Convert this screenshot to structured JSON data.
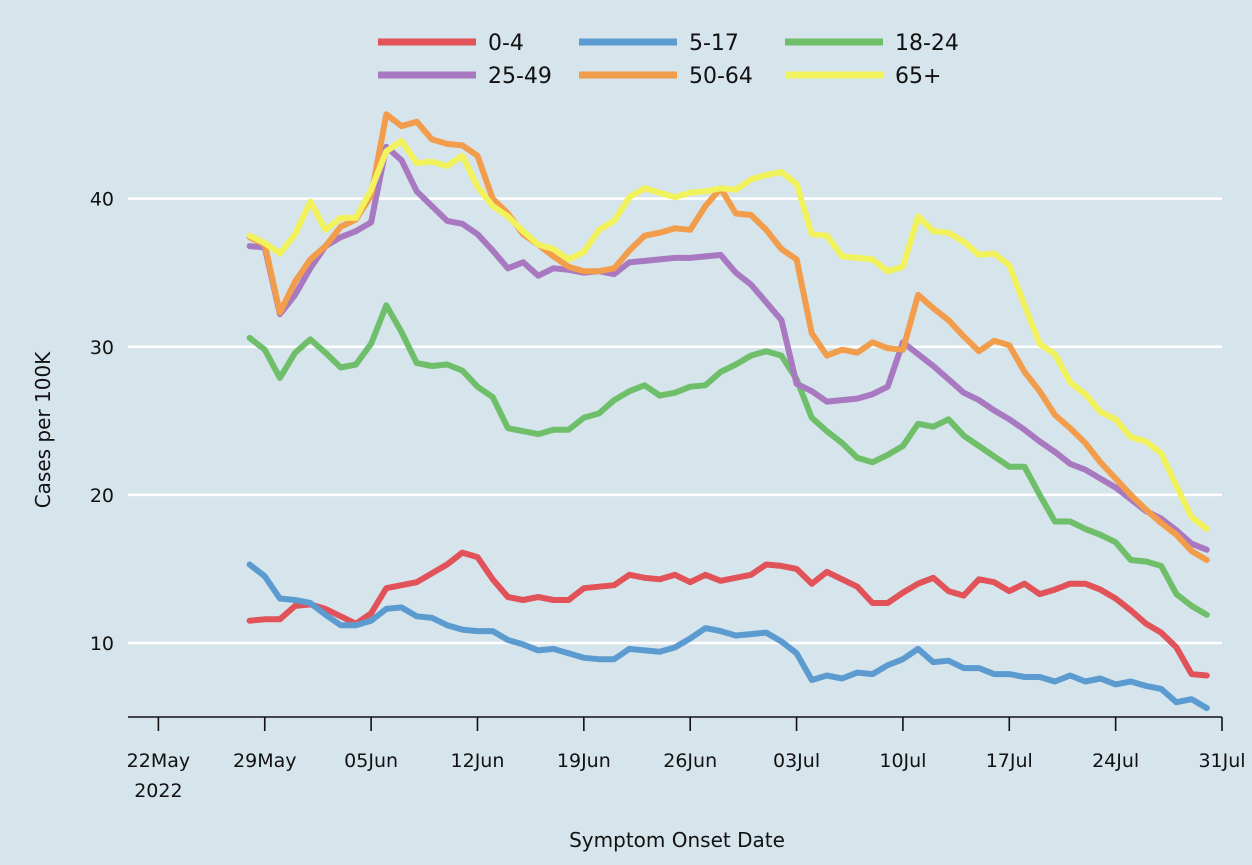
{
  "chart_data": {
    "type": "line",
    "title": "",
    "xlabel": "Symptom Onset Date",
    "ylabel": "Cases per 100K",
    "xlim": [
      "2022-05-20",
      "2022-07-31"
    ],
    "ylim": [
      5,
      47
    ],
    "grid": true,
    "legend_position": "top",
    "x_ticks": [
      {
        "date": "2022-05-22",
        "label": "22May",
        "sublabel": "2022"
      },
      {
        "date": "2022-05-29",
        "label": "29May"
      },
      {
        "date": "2022-06-05",
        "label": "05Jun"
      },
      {
        "date": "2022-06-12",
        "label": "12Jun"
      },
      {
        "date": "2022-06-19",
        "label": "19Jun"
      },
      {
        "date": "2022-06-26",
        "label": "26Jun"
      },
      {
        "date": "2022-07-03",
        "label": "03Jul"
      },
      {
        "date": "2022-07-10",
        "label": "10Jul"
      },
      {
        "date": "2022-07-17",
        "label": "17Jul"
      },
      {
        "date": "2022-07-24",
        "label": "24Jul"
      },
      {
        "date": "2022-07-31",
        "label": "31Jul"
      }
    ],
    "y_ticks": [
      10,
      20,
      30,
      40
    ],
    "x_start": "2022-05-28",
    "x_step_days": 1,
    "series": [
      {
        "name": "0-4",
        "color": "#e15259",
        "values": [
          11.5,
          11.6,
          11.6,
          12.5,
          12.6,
          12.3,
          11.8,
          11.3,
          12.0,
          13.7,
          13.9,
          14.1,
          14.7,
          15.3,
          16.1,
          15.8,
          14.3,
          13.1,
          12.9,
          13.1,
          12.9,
          12.9,
          13.7,
          13.8,
          13.9,
          14.6,
          14.4,
          14.3,
          14.6,
          14.1,
          14.6,
          14.2,
          14.4,
          14.6,
          15.3,
          15.2,
          15.0,
          14.0,
          14.8,
          14.3,
          13.8,
          12.7,
          12.7,
          13.4,
          14.0,
          14.4,
          13.5,
          13.2,
          14.3,
          14.1,
          13.5,
          14.0,
          13.3,
          13.6,
          14.0,
          14.0,
          13.6,
          13.0,
          12.2,
          11.3,
          10.7,
          9.7,
          7.9,
          7.8
        ]
      },
      {
        "name": "5-17",
        "color": "#5b9bd0",
        "values": [
          15.3,
          14.5,
          13.0,
          12.9,
          12.7,
          11.9,
          11.2,
          11.2,
          11.5,
          12.3,
          12.4,
          11.8,
          11.7,
          11.2,
          10.9,
          10.8,
          10.8,
          10.2,
          9.9,
          9.5,
          9.6,
          9.3,
          9.0,
          8.9,
          8.9,
          9.6,
          9.5,
          9.4,
          9.7,
          10.3,
          11.0,
          10.8,
          10.5,
          10.6,
          10.7,
          10.1,
          9.3,
          7.5,
          7.8,
          7.6,
          8.0,
          7.9,
          8.5,
          8.9,
          9.6,
          8.7,
          8.8,
          8.3,
          8.3,
          7.9,
          7.9,
          7.7,
          7.7,
          7.4,
          7.8,
          7.4,
          7.6,
          7.2,
          7.4,
          7.1,
          6.9,
          6.0,
          6.2,
          5.6
        ]
      },
      {
        "name": "18-24",
        "color": "#6fbf6a",
        "values": [
          30.6,
          29.8,
          27.9,
          29.6,
          30.5,
          29.6,
          28.6,
          28.8,
          30.2,
          32.8,
          31.0,
          28.9,
          28.7,
          28.8,
          28.4,
          27.3,
          26.6,
          24.5,
          24.3,
          24.1,
          24.4,
          24.4,
          25.2,
          25.5,
          26.4,
          27.0,
          27.4,
          26.7,
          26.9,
          27.3,
          27.4,
          28.3,
          28.8,
          29.4,
          29.7,
          29.4,
          27.8,
          25.2,
          24.3,
          23.5,
          22.5,
          22.2,
          22.7,
          23.3,
          24.8,
          24.6,
          25.1,
          24.0,
          23.3,
          22.6,
          21.9,
          21.9,
          20.0,
          18.2,
          18.2,
          17.7,
          17.3,
          16.8,
          15.6,
          15.5,
          15.2,
          13.3,
          12.5,
          11.9
        ]
      },
      {
        "name": "25-49",
        "color": "#a879c0",
        "values": [
          36.8,
          36.7,
          32.2,
          33.5,
          35.3,
          36.8,
          37.4,
          37.8,
          38.4,
          43.5,
          42.6,
          40.5,
          39.5,
          38.5,
          38.3,
          37.6,
          36.5,
          35.3,
          35.7,
          34.8,
          35.3,
          35.2,
          35.0,
          35.1,
          34.9,
          35.7,
          35.8,
          35.9,
          36.0,
          36.0,
          36.1,
          36.2,
          35.0,
          34.2,
          33.0,
          31.8,
          27.5,
          27.0,
          26.3,
          26.4,
          26.5,
          26.8,
          27.3,
          30.3,
          29.5,
          28.7,
          27.8,
          26.9,
          26.4,
          25.7,
          25.1,
          24.4,
          23.6,
          22.9,
          22.1,
          21.7,
          21.1,
          20.5,
          19.7,
          18.9,
          18.4,
          17.6,
          16.7,
          16.3
        ]
      },
      {
        "name": "50-64",
        "color": "#f29d4b",
        "values": [
          37.4,
          36.9,
          32.3,
          34.4,
          35.9,
          36.8,
          38.1,
          38.6,
          40.2,
          45.7,
          44.9,
          45.2,
          44.0,
          43.7,
          43.6,
          42.9,
          40.0,
          39.0,
          37.6,
          36.9,
          36.1,
          35.4,
          35.1,
          35.1,
          35.3,
          36.5,
          37.5,
          37.7,
          38.0,
          37.9,
          39.5,
          40.7,
          39.0,
          38.9,
          37.9,
          36.6,
          35.9,
          30.9,
          29.4,
          29.8,
          29.6,
          30.3,
          29.9,
          29.8,
          33.5,
          32.6,
          31.8,
          30.7,
          29.7,
          30.4,
          30.1,
          28.3,
          27.0,
          25.4,
          24.5,
          23.5,
          22.2,
          21.1,
          20.0,
          19.0,
          18.1,
          17.3,
          16.2,
          15.6
        ]
      },
      {
        "name": "65+",
        "color": "#f2f25c",
        "values": [
          37.5,
          37.0,
          36.3,
          37.6,
          39.8,
          37.9,
          38.7,
          38.7,
          40.6,
          43.2,
          43.9,
          42.4,
          42.5,
          42.2,
          42.9,
          40.8,
          39.5,
          38.8,
          37.8,
          36.9,
          36.6,
          35.9,
          36.4,
          37.9,
          38.5,
          40.1,
          40.7,
          40.4,
          40.1,
          40.4,
          40.5,
          40.7,
          40.6,
          41.3,
          41.6,
          41.8,
          41.0,
          37.6,
          37.5,
          36.1,
          36.0,
          35.9,
          35.1,
          35.4,
          38.8,
          37.8,
          37.7,
          37.1,
          36.2,
          36.3,
          35.5,
          32.8,
          30.2,
          29.5,
          27.6,
          26.8,
          25.6,
          25.1,
          23.9,
          23.6,
          22.8,
          20.6,
          18.5,
          17.7
        ]
      }
    ]
  }
}
